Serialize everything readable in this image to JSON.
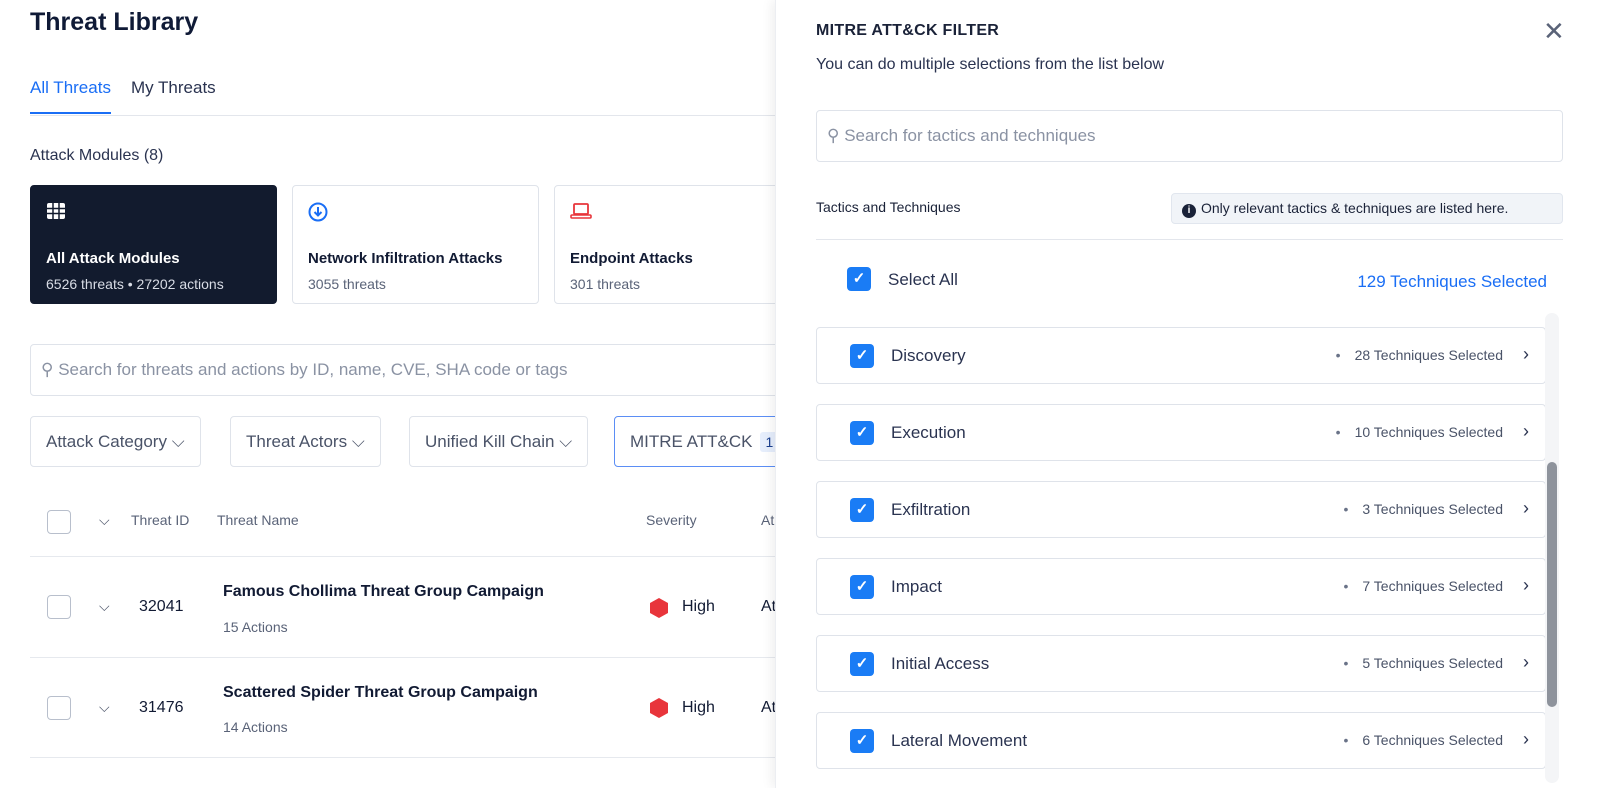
{
  "page": {
    "title": "Threat Library"
  },
  "tabs": [
    {
      "label": "All Threats",
      "active": true
    },
    {
      "label": "My Threats",
      "active": false
    }
  ],
  "modules": {
    "header": "Attack Modules (8)",
    "cards": [
      {
        "name": "All Attack Modules",
        "count": "6526 threats",
        "actions": "27202 actions",
        "icon": "grid-icon"
      },
      {
        "name": "Network Infiltration Attacks",
        "count": "3055 threats",
        "icon": "download-circle-icon"
      },
      {
        "name": "Endpoint Attacks",
        "count": "301 threats",
        "icon": "laptop-icon"
      }
    ]
  },
  "search": {
    "placeholder": "Search for threats and actions by ID, name, CVE, SHA code or tags"
  },
  "filters": [
    {
      "label": "Attack Category"
    },
    {
      "label": "Threat Actors"
    },
    {
      "label": "Unified Kill Chain"
    },
    {
      "label": "MITRE ATT&CK",
      "badge": "1"
    }
  ],
  "table": {
    "columns": [
      "Threat ID",
      "Threat Name",
      "Severity",
      "At"
    ],
    "rows": [
      {
        "id": "32041",
        "name": "Famous Chollima Threat Group Campaign",
        "actions": "15 Actions",
        "severity": "High",
        "col4": "At"
      },
      {
        "id": "31476",
        "name": "Scattered Spider Threat Group Campaign",
        "actions": "14 Actions",
        "severity": "High",
        "col4": "At"
      }
    ]
  },
  "panel": {
    "title": "MITRE ATT&CK FILTER",
    "subtitle": "You can do multiple selections from the list below",
    "search_placeholder": "Search for tactics and techniques",
    "section_label": "Tactics and Techniques",
    "info": "Only relevant tactics & techniques are listed here.",
    "select_all": "Select All",
    "total_selected": "129 Techniques Selected",
    "tactics": [
      {
        "name": "Discovery",
        "selected": "28 Techniques Selected",
        "checked": true
      },
      {
        "name": "Execution",
        "selected": "10 Techniques Selected",
        "checked": true
      },
      {
        "name": "Exfiltration",
        "selected": "3 Techniques Selected",
        "checked": true
      },
      {
        "name": "Impact",
        "selected": "7 Techniques Selected",
        "checked": true
      },
      {
        "name": "Initial Access",
        "selected": "5 Techniques Selected",
        "checked": true
      },
      {
        "name": "Lateral Movement",
        "selected": "6 Techniques Selected",
        "checked": true
      }
    ]
  },
  "colors": {
    "accent": "#1a6ef5",
    "dark_card": "#121b2e",
    "severity_high": "#e8353b",
    "checkbox": "#1a7cf5"
  }
}
